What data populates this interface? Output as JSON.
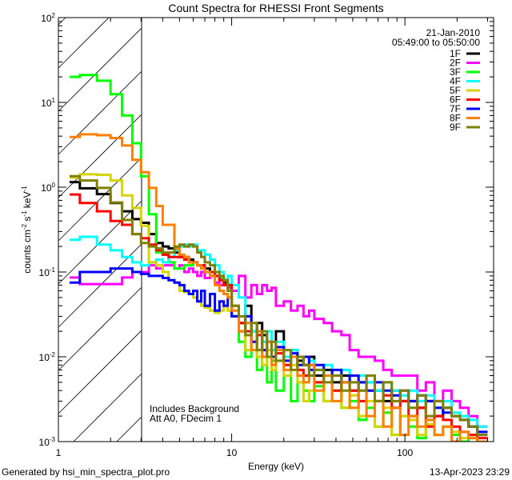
{
  "chart_data": {
    "type": "line",
    "style": "histogram-steps",
    "title": "Count Spectra for RHESSI Front Segments",
    "xlabel": "Energy (keV)",
    "ylabel": {
      "base": "counts cm",
      "e1": "-2",
      "mid1": " s",
      "e2": "-1",
      "mid2": " keV",
      "e3": "-1"
    },
    "xscale": "log",
    "yscale": "log",
    "xlim": [
      1,
      325
    ],
    "ylim": [
      0.001,
      100
    ],
    "xticks": [
      {
        "value": 1,
        "label": "1"
      },
      {
        "value": 10,
        "label": "10"
      },
      {
        "value": 100,
        "label": "100"
      }
    ],
    "yticks": [
      {
        "value": 100,
        "base": "10",
        "exp": "2"
      },
      {
        "value": 10,
        "base": "10",
        "exp": "1"
      },
      {
        "value": 1,
        "base": "10",
        "exp": "0"
      },
      {
        "value": 0.1,
        "base": "10",
        "exp": "-1"
      },
      {
        "value": 0.01,
        "base": "10",
        "exp": "-2"
      },
      {
        "value": 0.001,
        "base": "10",
        "exp": "-3"
      }
    ],
    "shaded_region_keV": [
      1,
      3
    ],
    "date": "21-Jan-2010",
    "time_range": "05:49:00 to 05:50:00",
    "annotations": [
      "Includes Background",
      "Att A0, FDecim 1"
    ],
    "legend_position": "top-right",
    "energy_edges": [
      1.16,
      1.33,
      1.67,
      2,
      2.33,
      2.67,
      3,
      3.33,
      3.67,
      4,
      4.33,
      4.67,
      5,
      5.33,
      5.67,
      6,
      6.33,
      6.67,
      7,
      7.5,
      8,
      8.5,
      9,
      9.5,
      10,
      11,
      12,
      13,
      14,
      15,
      16,
      17,
      18,
      20,
      22,
      24,
      26,
      28,
      30,
      34,
      38,
      43,
      48,
      54,
      60,
      67,
      75,
      84,
      94,
      105,
      118,
      132,
      148,
      166,
      186,
      208,
      233,
      262,
      300
    ],
    "series": [
      {
        "name": "1F",
        "color": "#000000",
        "values": [
          1.15,
          0.97,
          0.83,
          0.65,
          0.52,
          0.42,
          0.38,
          0.28,
          0.22,
          0.2,
          0.19,
          0.17,
          0.15,
          0.15,
          0.14,
          0.13,
          0.12,
          0.12,
          0.11,
          0.1,
          0.09,
          0.08,
          0.075,
          0.07,
          0.03,
          0.025,
          0.04,
          0.02,
          0.025,
          0.018,
          0.015,
          0.012,
          0.02,
          0.01,
          0.012,
          0.009,
          0.008,
          0.01,
          0.006,
          0.007,
          0.005,
          0.006,
          0.004,
          0.005,
          0.005,
          0.004,
          0.003,
          0.004,
          0.003,
          0.003,
          0.0025,
          0.003,
          0.002,
          0.0025,
          0.002,
          0.0018,
          0.0015,
          0.0012
        ]
      },
      {
        "name": "2F",
        "color": "#ff00ff",
        "values": [
          0.086,
          0.072,
          0.072,
          0.072,
          0.086,
          0.1,
          0.1,
          0.12,
          0.11,
          0.12,
          0.12,
          0.11,
          0.12,
          0.1,
          0.11,
          0.1,
          0.09,
          0.1,
          0.085,
          0.09,
          0.075,
          0.07,
          0.08,
          0.065,
          0.06,
          0.09,
          0.05,
          0.07,
          0.055,
          0.07,
          0.06,
          0.065,
          0.04,
          0.045,
          0.035,
          0.04,
          0.03,
          0.035,
          0.028,
          0.025,
          0.02,
          0.018,
          0.012,
          0.01,
          0.01,
          0.009,
          0.007,
          0.006,
          0.006,
          0.006,
          0.004,
          0.005,
          0.003,
          0.004,
          0.003,
          0.0025,
          0.002,
          0.0015
        ]
      },
      {
        "name": "3F",
        "color": "#00ff00",
        "values": [
          20,
          21,
          18,
          12.5,
          7,
          3.3,
          1.35,
          0.48,
          0.17,
          0.16,
          0.13,
          0.11,
          0.11,
          0.12,
          0.12,
          0.13,
          0.12,
          0.11,
          0.1,
          0.1,
          0.09,
          0.085,
          0.08,
          0.07,
          0.03,
          0.015,
          0.01,
          0.02,
          0.007,
          0.012,
          0.005,
          0.009,
          0.004,
          0.006,
          0.003,
          0.005,
          0.004,
          0.003,
          0.0045,
          0.003,
          0.004,
          0.0025,
          0.003,
          0.0018,
          0.0025,
          0.0015,
          0.0022,
          0.0012,
          0.002,
          0.0015,
          0.0011,
          0.0018,
          0.0012,
          0.0015,
          0.0012,
          0.001,
          0.0011,
          0.001
        ]
      },
      {
        "name": "4F",
        "color": "#00ffff",
        "values": [
          0.24,
          0.26,
          0.21,
          0.18,
          0.15,
          0.13,
          0.12,
          0.13,
          0.14,
          0.13,
          0.15,
          0.18,
          0.2,
          0.21,
          0.2,
          0.21,
          0.18,
          0.18,
          0.16,
          0.14,
          0.12,
          0.1,
          0.08,
          0.09,
          0.07,
          0.05,
          0.025,
          0.02,
          0.018,
          0.015,
          0.02,
          0.012,
          0.015,
          0.01,
          0.012,
          0.008,
          0.01,
          0.009,
          0.007,
          0.008,
          0.006,
          0.007,
          0.005,
          0.006,
          0.005,
          0.004,
          0.005,
          0.004,
          0.0035,
          0.004,
          0.003,
          0.0035,
          0.0025,
          0.003,
          0.0022,
          0.002,
          0.0018,
          0.0015
        ]
      },
      {
        "name": "5F",
        "color": "#d4d400",
        "values": [
          1.3,
          1.42,
          1.4,
          1.2,
          0.8,
          0.57,
          0.35,
          0.13,
          0.12,
          0.1,
          0.08,
          0.075,
          0.06,
          0.058,
          0.055,
          0.05,
          0.045,
          0.04,
          0.038,
          0.035,
          0.033,
          0.035,
          0.04,
          0.035,
          0.03,
          0.02,
          0.012,
          0.015,
          0.01,
          0.008,
          0.012,
          0.007,
          0.009,
          0.006,
          0.008,
          0.005,
          0.003,
          0.004,
          0.005,
          0.003,
          0.004,
          0.0025,
          0.0035,
          0.002,
          0.003,
          0.0015,
          0.0025,
          0.0012,
          0.002,
          0.0018,
          0.0012,
          0.0016,
          0.0012,
          0.0015,
          0.0013,
          0.0011,
          0.0012,
          0.001
        ]
      },
      {
        "name": "6F",
        "color": "#ff0000",
        "values": [
          0.82,
          0.65,
          0.52,
          0.4,
          0.36,
          0.28,
          0.25,
          0.21,
          0.18,
          0.16,
          0.15,
          0.15,
          0.15,
          0.14,
          0.13,
          0.13,
          0.12,
          0.12,
          0.1,
          0.1,
          0.09,
          0.08,
          0.07,
          0.07,
          0.04,
          0.025,
          0.02,
          0.015,
          0.018,
          0.012,
          0.015,
          0.01,
          0.011,
          0.008,
          0.01,
          0.007,
          0.006,
          0.008,
          0.005,
          0.006,
          0.004,
          0.005,
          0.004,
          0.003,
          0.004,
          0.003,
          0.0035,
          0.0025,
          0.003,
          0.002,
          0.0025,
          0.0015,
          0.002,
          0.0018,
          0.0015,
          0.0013,
          0.0012,
          0.0011
        ]
      },
      {
        "name": "7F",
        "color": "#0000ff",
        "values": [
          0.075,
          0.1,
          0.1,
          0.11,
          0.11,
          0.1,
          0.095,
          0.09,
          0.09,
          0.085,
          0.08,
          0.075,
          0.07,
          0.06,
          0.055,
          0.06,
          0.045,
          0.06,
          0.04,
          0.055,
          0.035,
          0.045,
          0.04,
          0.05,
          0.03,
          0.02,
          0.03,
          0.015,
          0.02,
          0.012,
          0.015,
          0.01,
          0.013,
          0.009,
          0.011,
          0.008,
          0.01,
          0.007,
          0.008,
          0.006,
          0.007,
          0.005,
          0.006,
          0.005,
          0.004,
          0.005,
          0.004,
          0.0035,
          0.004,
          0.003,
          0.0035,
          0.003,
          0.0025,
          0.0022,
          0.002,
          0.0018,
          0.0015,
          0.0013
        ]
      },
      {
        "name": "8F",
        "color": "#ff8000",
        "values": [
          3.9,
          4.2,
          4.1,
          3.8,
          3.1,
          2.1,
          1.5,
          0.98,
          0.6,
          0.36,
          0.36,
          0.19,
          0.16,
          0.15,
          0.13,
          0.13,
          0.12,
          0.11,
          0.1,
          0.09,
          0.07,
          0.06,
          0.055,
          0.05,
          0.035,
          0.02,
          0.025,
          0.012,
          0.02,
          0.01,
          0.015,
          0.008,
          0.012,
          0.007,
          0.01,
          0.006,
          0.005,
          0.008,
          0.004,
          0.006,
          0.003,
          0.005,
          0.0025,
          0.004,
          0.002,
          0.003,
          0.0015,
          0.0025,
          0.0012,
          0.002,
          0.0015,
          0.0018,
          0.0012,
          0.0015,
          0.001,
          0.0013,
          0.0011,
          0.001
        ]
      },
      {
        "name": "9F",
        "color": "#808000",
        "values": [
          1.35,
          1.2,
          0.98,
          0.66,
          0.41,
          0.28,
          0.22,
          0.2,
          0.19,
          0.17,
          0.17,
          0.2,
          0.21,
          0.2,
          0.21,
          0.2,
          0.17,
          0.15,
          0.13,
          0.12,
          0.1,
          0.09,
          0.08,
          0.06,
          0.04,
          0.03,
          0.018,
          0.025,
          0.012,
          0.02,
          0.01,
          0.015,
          0.009,
          0.012,
          0.007,
          0.01,
          0.008,
          0.006,
          0.007,
          0.005,
          0.006,
          0.004,
          0.005,
          0.004,
          0.006,
          0.003,
          0.005,
          0.003,
          0.004,
          0.0025,
          0.0035,
          0.002,
          0.003,
          0.0025,
          0.002,
          0.0018,
          0.0015,
          0.0012
        ]
      }
    ]
  },
  "footer": {
    "generated_by": "Generated by hsi_min_spectra_plot.pro",
    "timestamp": "13-Apr-2023 23:29"
  }
}
